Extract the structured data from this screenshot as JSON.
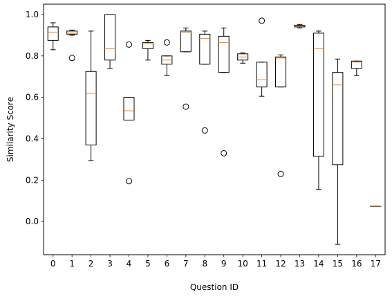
{
  "chart_data": {
    "type": "boxplot",
    "xlabel": "Question ID",
    "ylabel": "Similarity Score",
    "categories": [
      "0",
      "1",
      "2",
      "3",
      "4",
      "5",
      "6",
      "7",
      "8",
      "9",
      "10",
      "11",
      "12",
      "13",
      "14",
      "15",
      "16",
      "17"
    ],
    "ylim": [
      -0.16,
      1.05
    ],
    "yticks": [
      0.0,
      0.2,
      0.4,
      0.6,
      0.8,
      1.0
    ],
    "ytick_labels": [
      "0.0",
      "0.2",
      "0.4",
      "0.6",
      "0.8",
      "1.0"
    ],
    "grid": false,
    "colors": {
      "box": "#000000",
      "median": "#ff7f0e",
      "flier": "#000000"
    },
    "boxes": [
      {
        "id": "0",
        "whislo": 0.83,
        "q1": 0.875,
        "med": 0.915,
        "q3": 0.94,
        "whishi": 0.96,
        "fliers": []
      },
      {
        "id": "1",
        "whislo": 0.9,
        "q1": 0.905,
        "med": 0.91,
        "q3": 0.92,
        "whishi": 0.925,
        "fliers": [
          0.79
        ]
      },
      {
        "id": "2",
        "whislo": 0.295,
        "q1": 0.37,
        "med": 0.62,
        "q3": 0.725,
        "whishi": 0.92,
        "fliers": []
      },
      {
        "id": "3",
        "whislo": 0.74,
        "q1": 0.78,
        "med": 0.835,
        "q3": 1.0,
        "whishi": 1.0,
        "fliers": []
      },
      {
        "id": "4",
        "whislo": 0.49,
        "q1": 0.49,
        "med": 0.535,
        "q3": 0.6,
        "whishi": 0.6,
        "fliers": [
          0.855,
          0.195
        ]
      },
      {
        "id": "5",
        "whislo": 0.78,
        "q1": 0.835,
        "med": 0.86,
        "q3": 0.865,
        "whishi": 0.875,
        "fliers": []
      },
      {
        "id": "6",
        "whislo": 0.705,
        "q1": 0.76,
        "med": 0.78,
        "q3": 0.8,
        "whishi": 0.8,
        "fliers": [
          0.865
        ]
      },
      {
        "id": "7",
        "whislo": 0.82,
        "q1": 0.82,
        "med": 0.915,
        "q3": 0.92,
        "whishi": 0.935,
        "fliers": [
          0.555
        ]
      },
      {
        "id": "8",
        "whislo": 0.76,
        "q1": 0.76,
        "med": 0.885,
        "q3": 0.905,
        "whishi": 0.92,
        "fliers": [
          0.44
        ]
      },
      {
        "id": "9",
        "whislo": 0.72,
        "q1": 0.72,
        "med": 0.865,
        "q3": 0.895,
        "whishi": 0.935,
        "fliers": [
          0.33
        ]
      },
      {
        "id": "10",
        "whislo": 0.765,
        "q1": 0.78,
        "med": 0.795,
        "q3": 0.81,
        "whishi": 0.815,
        "fliers": []
      },
      {
        "id": "11",
        "whislo": 0.605,
        "q1": 0.65,
        "med": 0.685,
        "q3": 0.77,
        "whishi": 0.77,
        "fliers": [
          0.97
        ]
      },
      {
        "id": "12",
        "whislo": 0.65,
        "q1": 0.65,
        "med": 0.79,
        "q3": 0.795,
        "whishi": 0.805,
        "fliers": [
          0.23
        ]
      },
      {
        "id": "13",
        "whislo": 0.935,
        "q1": 0.94,
        "med": 0.945,
        "q3": 0.948,
        "whishi": 0.952,
        "fliers": []
      },
      {
        "id": "14",
        "whislo": 0.155,
        "q1": 0.315,
        "med": 0.835,
        "q3": 0.91,
        "whishi": 0.92,
        "fliers": []
      },
      {
        "id": "15",
        "whislo": -0.11,
        "q1": 0.275,
        "med": 0.66,
        "q3": 0.72,
        "whishi": 0.785,
        "fliers": []
      },
      {
        "id": "16",
        "whislo": 0.705,
        "q1": 0.74,
        "med": 0.77,
        "q3": 0.775,
        "whishi": 0.775,
        "fliers": []
      },
      {
        "id": "17",
        "whislo": 0.075,
        "q1": 0.075,
        "med": 0.075,
        "q3": 0.075,
        "whishi": 0.075,
        "fliers": []
      }
    ]
  }
}
